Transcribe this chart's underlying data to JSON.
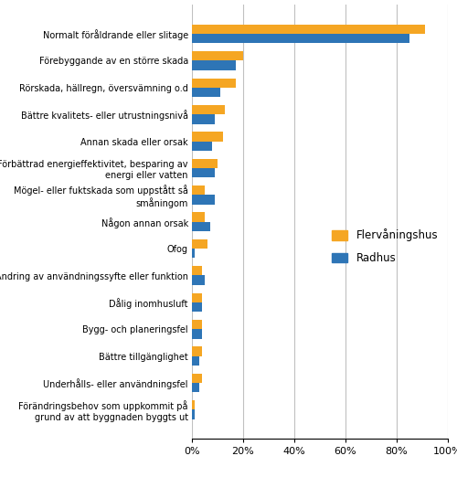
{
  "categories": [
    "Normalt föråldrande eller slitage",
    "Förebyggande av en större skada",
    "Rörskada, hällregn, översvämning o.d",
    "Bättre kvalitets- eller utrustningsnivå",
    "Annan skada eller orsak",
    "Förbättrad energieffektivitet, besparing av\nenergi eller vatten",
    "Mögel- eller fuktskada som uppstått så\nsmåningom",
    "Någon annan orsak",
    "Ofog",
    "Ändring av användningssyfte eller funktion",
    "Dålig inomhusluft",
    "Bygg- och planeringsfel",
    "Bättre tillgänglighet",
    "Underhålls- eller användningsfel",
    "Förändringsbehov som uppkommit på\ngrund av att byggnaden byggts ut"
  ],
  "flervåningshus": [
    91,
    20,
    17,
    13,
    12,
    10,
    5,
    5,
    6,
    4,
    4,
    4,
    4,
    4,
    1
  ],
  "radhus": [
    85,
    17,
    11,
    9,
    8,
    9,
    9,
    7,
    1,
    5,
    4,
    4,
    3,
    3,
    1
  ],
  "color_flervåningshus": "#F5A623",
  "color_radhus": "#2E75B6",
  "legend_flervåningshus": "Flervåningshus",
  "legend_radhus": "Radhus",
  "xlim": [
    0,
    100
  ],
  "xtick_labels": [
    "0%",
    "20%",
    "40%",
    "60%",
    "80%",
    "100%"
  ],
  "xtick_values": [
    0,
    20,
    40,
    60,
    80,
    100
  ],
  "background_color": "#ffffff",
  "grid_color": "#c0c0c0",
  "bar_height": 0.35,
  "figsize": [
    5.0,
    5.22
  ],
  "dpi": 100
}
